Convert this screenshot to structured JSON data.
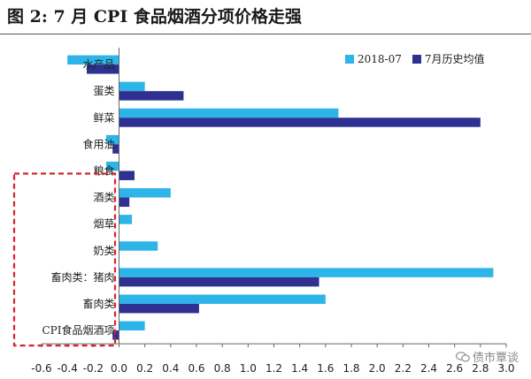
{
  "title": "图 2:  7 月 CPI 食品烟酒分项价格走强",
  "legend": {
    "series_a": "2018-07",
    "series_b": "7月历史均值"
  },
  "watermark": "债市覃谈",
  "colors": {
    "series_a": "#2db4e8",
    "series_b": "#2e3192",
    "highlight_box": "#d8232a"
  },
  "chart_data": {
    "type": "bar",
    "orientation": "horizontal",
    "categories": [
      "水产品",
      "蛋类",
      "鲜菜",
      "食用油",
      "粮食",
      "酒类",
      "烟草",
      "奶类",
      "畜肉类：猪肉",
      "畜肉类",
      "CPI食品烟酒项"
    ],
    "series": [
      {
        "name": "2018-07",
        "values": [
          -0.4,
          0.2,
          1.7,
          -0.1,
          -0.1,
          0.4,
          0.1,
          0.3,
          2.9,
          1.6,
          0.2
        ]
      },
      {
        "name": "7月历史均值",
        "values": [
          -0.25,
          0.5,
          2.8,
          -0.05,
          0.12,
          0.08,
          0.0,
          0.0,
          1.55,
          0.62,
          -0.05
        ]
      }
    ],
    "xlim": [
      -0.6,
      3.0
    ],
    "xticks": [
      "-0.6",
      "-0.4",
      "-0.2",
      "0.0",
      "0.2",
      "0.4",
      "0.6",
      "0.8",
      "1.0",
      "1.2",
      "1.4",
      "1.6",
      "1.8",
      "2.0",
      "2.2",
      "2.4",
      "2.6",
      "2.8",
      "3.0"
    ],
    "legend_position": "top-right",
    "grid": false,
    "highlight": {
      "from_category": "酒类",
      "to_category": "CPI食品烟酒项"
    }
  }
}
